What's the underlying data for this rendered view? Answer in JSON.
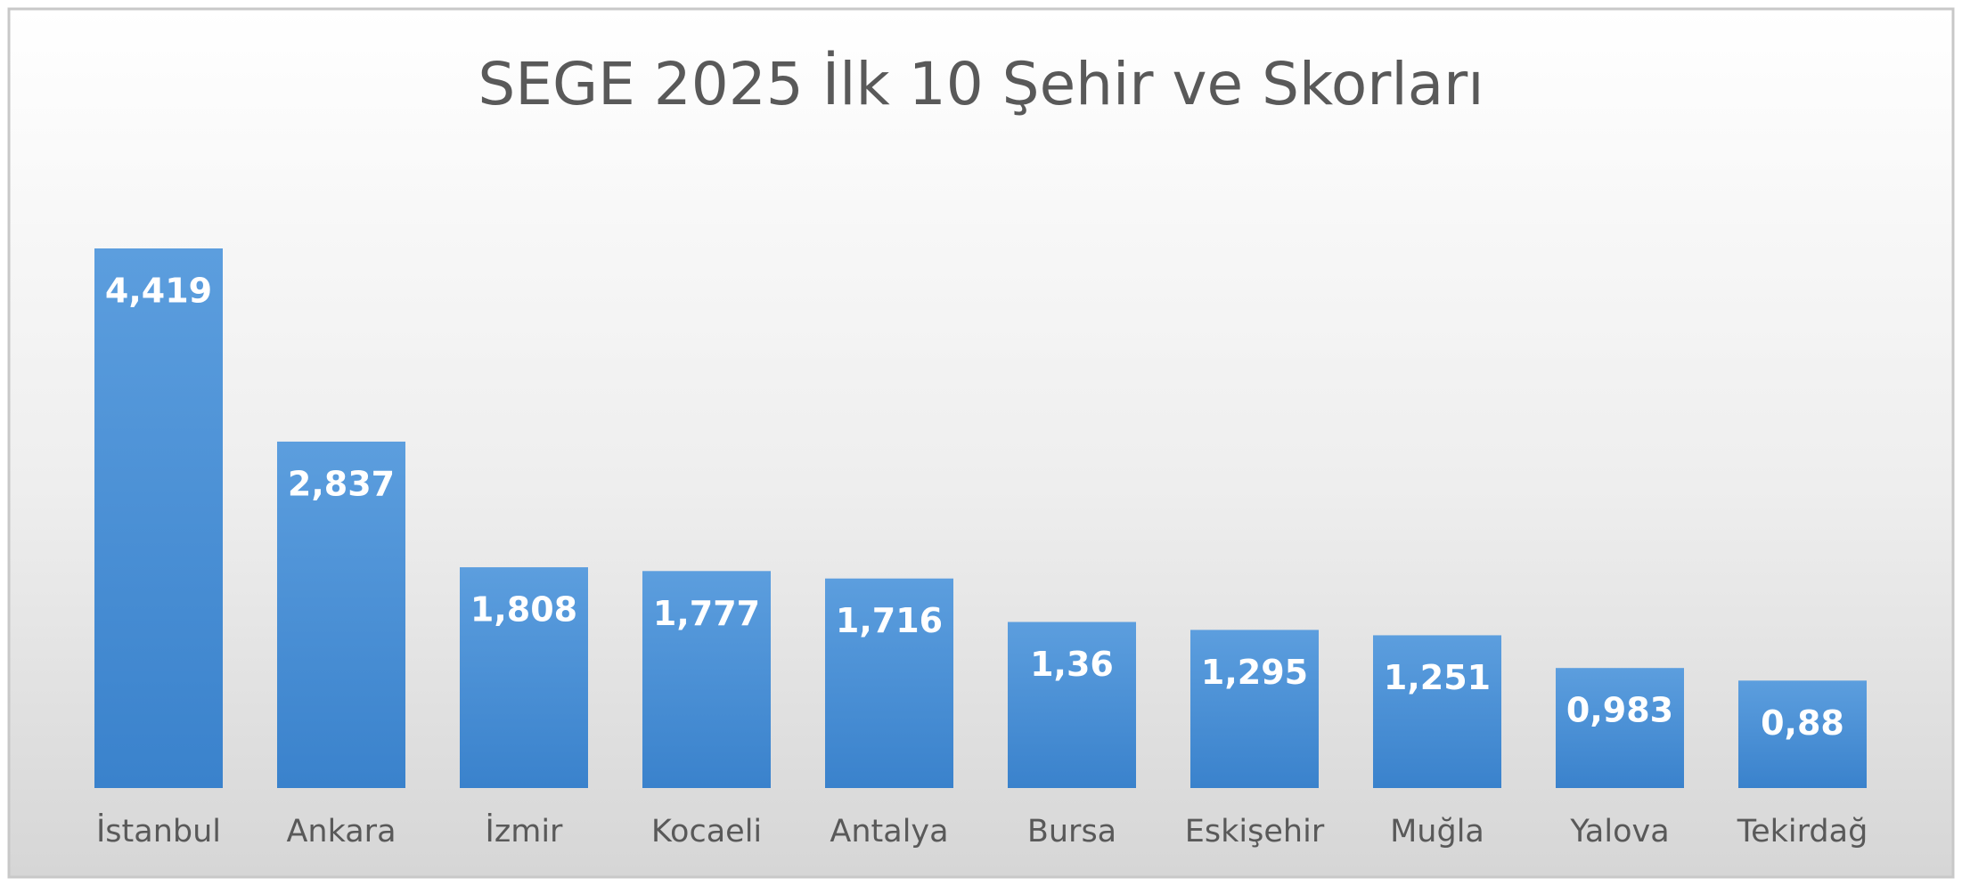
{
  "chart_data": {
    "type": "bar",
    "title": "SEGE 2025 İlk 10 Şehir ve Skorları",
    "categories": [
      "İstanbul",
      "Ankara",
      "İzmir",
      "Kocaeli",
      "Antalya",
      "Bursa",
      "Eskişehir",
      "Muğla",
      "Yalova",
      "Tekirdağ"
    ],
    "values": [
      4.419,
      2.837,
      1.808,
      1.777,
      1.716,
      1.36,
      1.295,
      1.251,
      0.983,
      0.88
    ],
    "value_labels": [
      "4,419",
      "2,837",
      "1,808",
      "1,777",
      "1,716",
      "1,36",
      "1,295",
      "1,251",
      "0,983",
      "0,88"
    ],
    "color": "#4a90d6"
  }
}
